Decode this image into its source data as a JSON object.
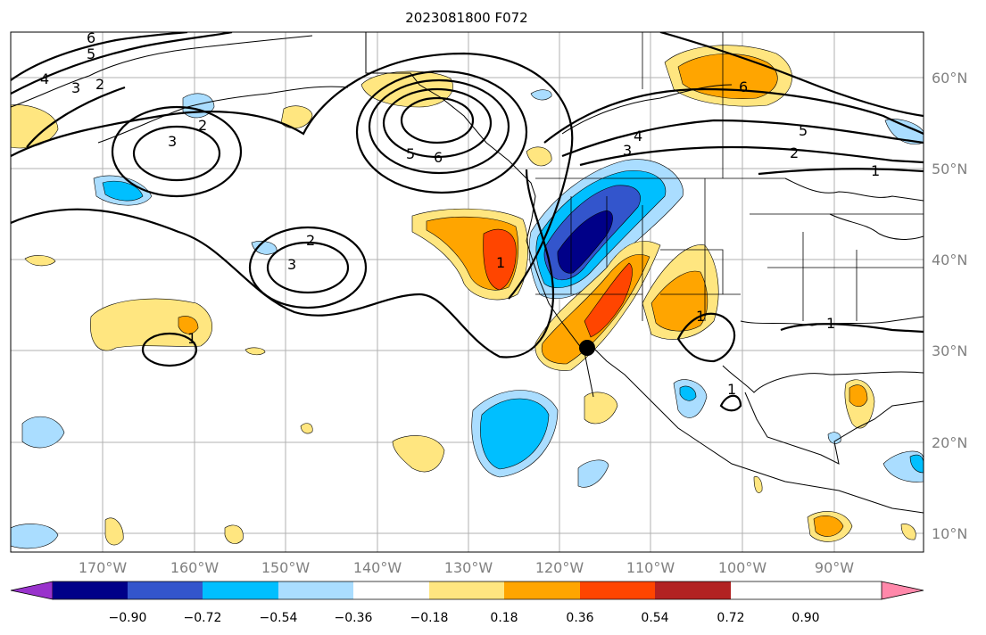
{
  "title": "2023081800 F072",
  "lat_labels": [
    "60°N",
    "50°N",
    "40°N",
    "30°N",
    "20°N",
    "10°N"
  ],
  "lon_labels": [
    "170°W",
    "160°W",
    "150°W",
    "140°W",
    "130°W",
    "120°W",
    "110°W",
    "100°W",
    "90°W"
  ],
  "colorbar": {
    "ticks": [
      "−0.90",
      "−0.72",
      "−0.54",
      "−0.36",
      "−0.18",
      "0.18",
      "0.36",
      "0.54",
      "0.72",
      "0.90"
    ],
    "colors": [
      "#9933cc",
      "#000088",
      "#3355cc",
      "#00bfff",
      "#aaddff",
      "#ffffff",
      "#ffe680",
      "#ffa500",
      "#ff4500",
      "#b22222",
      "#ff88aa"
    ]
  },
  "contour_labels": [
    "6",
    "5",
    "4",
    "3",
    "2",
    "2",
    "3",
    "2",
    "3",
    "1",
    "5",
    "6",
    "1",
    "4",
    "3",
    "5",
    "2",
    "1",
    "6",
    "1",
    "1",
    "1"
  ],
  "marker": {
    "lon": -117.1,
    "lat": 30.2
  }
}
